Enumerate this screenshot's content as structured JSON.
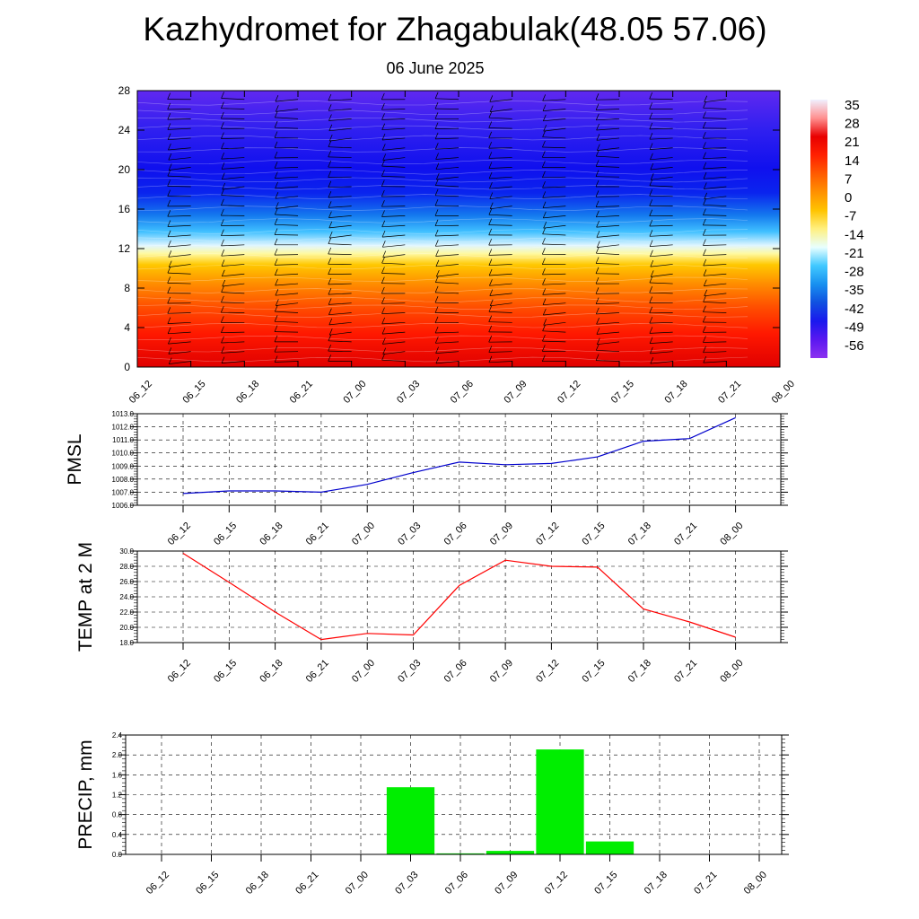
{
  "header": {
    "title": "Kazhydromet for Zhagabulak(48.05 57.06)",
    "date": "06 June 2025"
  },
  "time_labels": [
    "06_12",
    "06_15",
    "06_18",
    "06_21",
    "07_00",
    "07_03",
    "07_06",
    "07_09",
    "07_12",
    "07_15",
    "07_18",
    "07_21",
    "08_00"
  ],
  "colors": {
    "pmsl_line": "#0000cc",
    "temp_line": "#ff0000",
    "precip_bar": "#00ee00",
    "grid": "#000000"
  },
  "colorbar": {
    "labels": [
      "35",
      "28",
      "21",
      "14",
      "7",
      "0",
      "-7",
      "-14",
      "-21",
      "-28",
      "-35",
      "-42",
      "-49",
      "-56"
    ],
    "stops": [
      "#f0f0ff",
      "#ff9090",
      "#e80000",
      "#ff2000",
      "#ff5a00",
      "#ff9000",
      "#ffc400",
      "#fff080",
      "#e8ffff",
      "#40c8ff",
      "#1890f0",
      "#1050e0",
      "#1a18ee",
      "#5a18f0",
      "#8c30f0"
    ]
  },
  "chart_data": [
    {
      "type": "heatmap",
      "name": "temperature-wind-cross-section",
      "title": "",
      "ylim": [
        0,
        28
      ],
      "yticks": [
        0,
        4,
        8,
        12,
        16,
        20,
        24,
        28
      ],
      "x": [
        "06_12",
        "06_15",
        "06_18",
        "06_21",
        "07_00",
        "07_03",
        "07_06",
        "07_09",
        "07_12",
        "07_15",
        "07_18",
        "07_21",
        "08_00"
      ],
      "legend_range": [
        -56,
        35
      ]
    },
    {
      "type": "line",
      "name": "pmsl",
      "ylabel": "PMSL",
      "ylim": [
        1006.0,
        1013.0
      ],
      "yticks": [
        "1006.0",
        "1007.0",
        "1008.0",
        "1009.0",
        "1010.0",
        "1011.0",
        "1012.0",
        "1013.0"
      ],
      "x": [
        "06_12",
        "06_15",
        "06_18",
        "06_21",
        "07_00",
        "07_03",
        "07_06",
        "07_09",
        "07_12",
        "07_15",
        "07_18",
        "07_21",
        "08_00"
      ],
      "values": [
        1006.9,
        1007.1,
        1007.1,
        1007.0,
        1007.6,
        1008.5,
        1009.3,
        1009.1,
        1009.2,
        1009.7,
        1010.9,
        1011.1,
        1012.7
      ]
    },
    {
      "type": "line",
      "name": "temp2m",
      "ylabel": "TEMP at 2 M",
      "ylim": [
        18.0,
        30.0
      ],
      "yticks": [
        "18.0",
        "20.0",
        "22.0",
        "24.0",
        "26.0",
        "28.0",
        "30.0"
      ],
      "x": [
        "06_12",
        "06_15",
        "06_18",
        "06_21",
        "07_00",
        "07_03",
        "07_06",
        "07_09",
        "07_12",
        "07_15",
        "07_18",
        "07_21",
        "08_00"
      ],
      "values": [
        29.7,
        25.9,
        22.0,
        18.4,
        19.2,
        19.0,
        25.5,
        28.8,
        28.0,
        27.9,
        22.4,
        20.7,
        18.7
      ]
    },
    {
      "type": "bar",
      "name": "precip",
      "ylabel": "PRECIP, mm",
      "ylim": [
        0.0,
        2.4
      ],
      "yticks": [
        "0.0",
        "0.4",
        "0.8",
        "1.2",
        "1.6",
        "2.0",
        "2.4"
      ],
      "categories": [
        "06_12",
        "06_15",
        "06_18",
        "06_21",
        "07_00",
        "07_03",
        "07_06",
        "07_09",
        "07_12",
        "07_15",
        "07_18",
        "07_21",
        "08_00"
      ],
      "values": [
        0.0,
        0.0,
        0.0,
        0.0,
        0.0,
        1.35,
        0.02,
        0.07,
        2.11,
        0.26,
        0.0,
        0.0,
        0.0
      ]
    }
  ]
}
